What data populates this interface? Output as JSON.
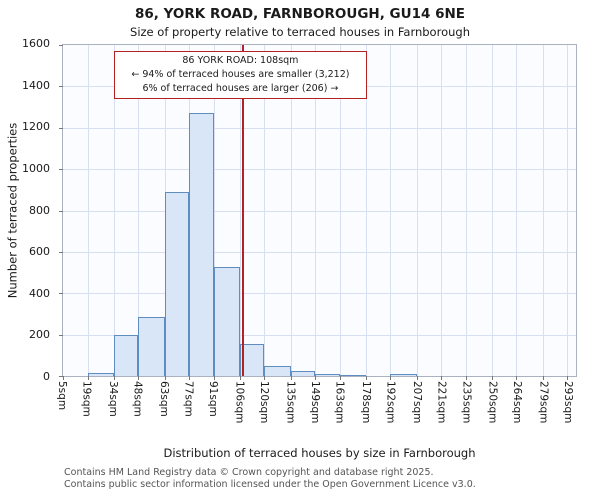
{
  "title": "86, YORK ROAD, FARNBOROUGH, GU14 6NE",
  "subtitle": "Size of property relative to terraced houses in Farnborough",
  "annotation": {
    "line1": "86 YORK ROAD: 108sqm",
    "line2": "← 94% of terraced houses are smaller (3,212)",
    "line3": "6% of terraced houses are larger (206) →"
  },
  "chart_data": {
    "type": "bar",
    "title": "86, YORK ROAD, FARNBOROUGH, GU14 6NE",
    "subtitle": "Size of property relative to terraced houses in Farnborough",
    "xlabel": "Distribution of terraced houses by size in Farnborough",
    "ylabel": "Number of terraced properties",
    "ylim": [
      0,
      1600
    ],
    "yticks": [
      0,
      200,
      400,
      600,
      800,
      1000,
      1200,
      1400,
      1600
    ],
    "xmax": 298,
    "bin_edges": [
      5,
      19,
      34,
      48,
      63,
      77,
      91,
      106,
      120,
      135,
      149,
      163,
      178,
      192,
      207,
      221,
      235,
      250,
      264,
      279,
      293
    ],
    "x_tick_labels": [
      "5sqm",
      "19sqm",
      "34sqm",
      "48sqm",
      "63sqm",
      "77sqm",
      "91sqm",
      "106sqm",
      "120sqm",
      "135sqm",
      "149sqm",
      "163sqm",
      "178sqm",
      "192sqm",
      "207sqm",
      "221sqm",
      "235sqm",
      "250sqm",
      "264sqm",
      "279sqm",
      "293sqm"
    ],
    "values": [
      0,
      15,
      200,
      285,
      890,
      1270,
      525,
      155,
      50,
      22,
      8,
      5,
      0,
      8,
      0,
      0,
      0,
      0,
      0,
      0
    ],
    "marker": {
      "value": 108,
      "color": "#b22222"
    },
    "bar_fill": "#d9e6f7",
    "bar_border": "#5f8dc0",
    "grid_color": "#d7dff0",
    "grid": true,
    "legend_position": "none"
  },
  "footer": {
    "line1": "Contains HM Land Registry data © Crown copyright and database right 2025.",
    "line2": "Contains public sector information licensed under the Open Government Licence v3.0."
  }
}
